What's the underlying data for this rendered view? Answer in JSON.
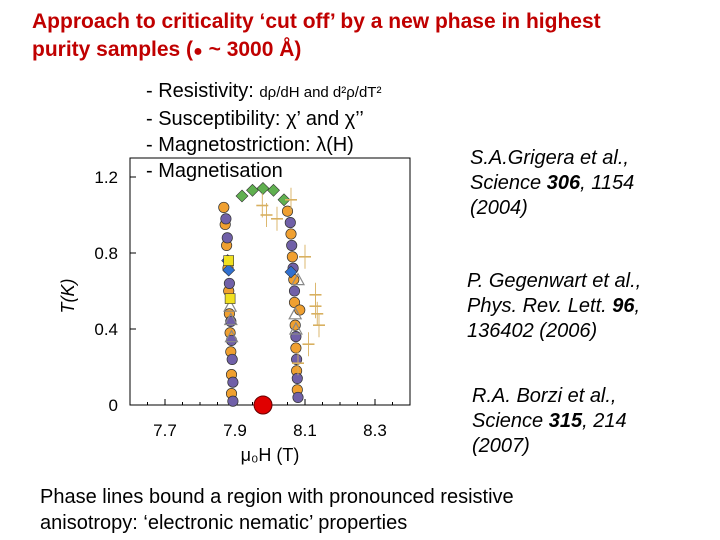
{
  "title": {
    "line1": "Approach to criticality ‘cut off’ by a new phase in highest",
    "line2_prefix": "purity samples (",
    "dot_glyph": "●",
    "tilde": "~",
    "value": "3000 Å",
    "line2_suffix": ")"
  },
  "methods": [
    {
      "prefix": "- Resistivity: ",
      "tail": "dρ/dH and d²ρ/dT²"
    },
    {
      "prefix": "- Susceptibility: ",
      "tail": "χ’ and χ’’"
    },
    {
      "prefix": "- Magnetostriction: ",
      "tail": "λ(H)"
    },
    {
      "prefix": "-  Magnetisation",
      "tail": ""
    }
  ],
  "references": [
    {
      "authors": "S.A.Grigera et al.,",
      "journal": "Science ",
      "volume": "306",
      "pages": ", 1154",
      "year": "(2004)"
    },
    {
      "authors": "P. Gegenwart et al.,",
      "journal": "Phys. Rev. Lett. ",
      "volume": "96",
      "pages": ",",
      "year": "136402 (2006)"
    },
    {
      "authors": "R.A. Borzi et al.,",
      "journal": "Science ",
      "volume": "315",
      "pages": ", 214",
      "year": "(2007)"
    }
  ],
  "footer": {
    "line1": "Phase lines bound a region with pronounced resistive",
    "line2": "anisotropy: ‘electronic nematic’ properties"
  },
  "colors": {
    "title": "#c00000",
    "orange": "#f0a030",
    "purple": "#7060a8",
    "green": "#60b050",
    "blue": "#3070d0",
    "yellow": "#f0e020",
    "errorbar": "#d8b060",
    "red_point": "#e00000"
  },
  "chart_data": {
    "type": "scatter",
    "xlabel": "μ₀H (T)",
    "ylabel": "T(K)",
    "xlim": [
      7.6,
      8.4
    ],
    "ylim": [
      0,
      1.3
    ],
    "x_ticks": [
      "7.7",
      "7.9",
      "8.1",
      "8.3"
    ],
    "x_tick_values": [
      7.7,
      7.9,
      8.1,
      8.3
    ],
    "y_ticks": [
      "0",
      "0.4",
      "0.8",
      "1.2"
    ],
    "y_tick_values": [
      0,
      0.4,
      0.8,
      1.2
    ],
    "series": [
      {
        "marker": "circle-orange",
        "color": "#f0a030",
        "points": [
          [
            7.868,
            1.04
          ],
          [
            7.872,
            0.95
          ],
          [
            7.876,
            0.84
          ],
          [
            7.88,
            0.72
          ],
          [
            7.882,
            0.6
          ],
          [
            7.884,
            0.48
          ],
          [
            7.886,
            0.38
          ],
          [
            7.888,
            0.28
          ],
          [
            7.89,
            0.16
          ],
          [
            7.89,
            0.06
          ],
          [
            8.05,
            1.02
          ],
          [
            8.06,
            0.9
          ],
          [
            8.064,
            0.78
          ],
          [
            8.068,
            0.66
          ],
          [
            8.07,
            0.54
          ],
          [
            8.072,
            0.42
          ],
          [
            8.074,
            0.3
          ],
          [
            8.076,
            0.18
          ],
          [
            8.078,
            0.08
          ],
          [
            8.085,
            0.5
          ]
        ]
      },
      {
        "marker": "circle-purple",
        "color": "#7060a8",
        "points": [
          [
            7.874,
            0.98
          ],
          [
            7.878,
            0.88
          ],
          [
            7.884,
            0.64
          ],
          [
            7.888,
            0.44
          ],
          [
            7.89,
            0.34
          ],
          [
            7.892,
            0.24
          ],
          [
            7.894,
            0.12
          ],
          [
            7.894,
            0.02
          ],
          [
            8.058,
            0.96
          ],
          [
            8.062,
            0.84
          ],
          [
            8.066,
            0.72
          ],
          [
            8.07,
            0.6
          ],
          [
            8.074,
            0.36
          ],
          [
            8.076,
            0.24
          ],
          [
            8.078,
            0.14
          ],
          [
            8.08,
            0.04
          ]
        ]
      },
      {
        "marker": "diamond-green",
        "color": "#60b050",
        "points": [
          [
            7.92,
            1.1
          ],
          [
            7.95,
            1.13
          ],
          [
            7.98,
            1.14
          ],
          [
            8.01,
            1.13
          ],
          [
            8.04,
            1.08
          ]
        ]
      },
      {
        "marker": "triangle-outline",
        "color": "#888888",
        "points": [
          [
            7.886,
            0.52
          ],
          [
            7.888,
            0.45
          ],
          [
            7.89,
            0.36
          ],
          [
            8.072,
            0.48
          ],
          [
            8.074,
            0.4
          ],
          [
            8.08,
            0.66
          ]
        ]
      },
      {
        "marker": "diamond-blue",
        "color": "#3070d0",
        "points": [
          [
            7.879,
            0.76
          ],
          [
            7.882,
            0.71
          ],
          [
            8.06,
            0.7
          ]
        ]
      },
      {
        "marker": "square-yellow",
        "color": "#f0e020",
        "points": [
          [
            7.882,
            0.76
          ],
          [
            7.886,
            0.56
          ]
        ]
      },
      {
        "marker": "errorbar-dash",
        "color": "#d8b060",
        "points": [
          [
            7.978,
            1.05
          ],
          [
            7.99,
            1.0
          ],
          [
            8.06,
            1.08
          ],
          [
            8.1,
            0.78
          ],
          [
            8.13,
            0.52
          ],
          [
            8.14,
            0.42
          ],
          [
            8.11,
            0.32
          ],
          [
            8.08,
            0.22
          ],
          [
            8.13,
            0.58
          ],
          [
            8.135,
            0.48
          ],
          [
            8.02,
            0.98
          ]
        ]
      },
      {
        "marker": "circle-red-large",
        "color": "#e00000",
        "points": [
          [
            7.98,
            0.0
          ]
        ]
      }
    ]
  }
}
